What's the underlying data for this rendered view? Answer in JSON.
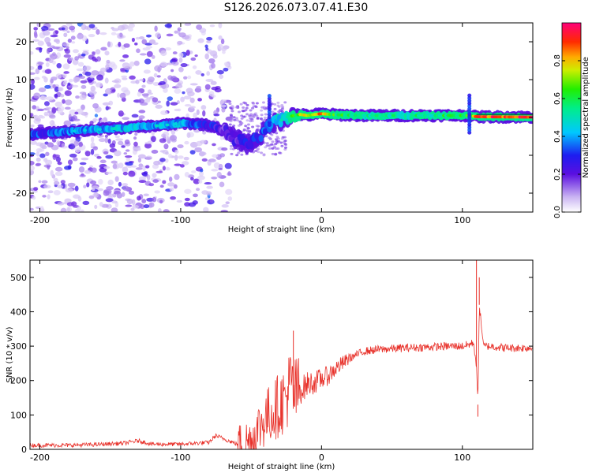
{
  "title": "S126.2026.073.07.41.E30",
  "chart_data": [
    {
      "type": "heatmap",
      "xlabel": "Height of straight line (km)",
      "ylabel": "Frequency (Hz)",
      "xlim": [
        -207,
        150
      ],
      "ylim": [
        -25,
        25
      ],
      "xticks": [
        -200,
        -100,
        0,
        100
      ],
      "yticks": [
        -20,
        -10,
        0,
        10,
        20
      ],
      "colorbar": {
        "label": "Normalized spectral amplitude",
        "range": [
          0,
          1
        ],
        "ticks": [
          0.0,
          0.2,
          0.4,
          0.6,
          0.8
        ]
      },
      "ridge": {
        "x": [
          -207,
          -190,
          -165,
          -150,
          -130,
          -110,
          -100,
          -85,
          -75,
          -68,
          -62,
          -55,
          -50,
          -45,
          -40,
          -35,
          -30,
          -25,
          -20,
          -15,
          -10,
          -5,
          0,
          10,
          30,
          60,
          80,
          100,
          105,
          110,
          150
        ],
        "y": [
          -4.5,
          -4,
          -3.3,
          -3,
          -2.5,
          -2,
          -1.5,
          -1.8,
          -2.5,
          -4,
          -5.5,
          -6.5,
          -7,
          -5.5,
          -3.5,
          -1.5,
          -1,
          0,
          0.5,
          0.8,
          0.5,
          0.8,
          1,
          0.7,
          0.5,
          0.5,
          0.5,
          0.5,
          0.5,
          0.2,
          0.1
        ],
        "amplitude": [
          0.3,
          0.32,
          0.38,
          0.4,
          0.42,
          0.38,
          0.4,
          0.3,
          0.25,
          0.2,
          0.2,
          0.25,
          0.25,
          0.3,
          0.35,
          0.4,
          0.45,
          0.5,
          0.6,
          0.7,
          0.75,
          0.8,
          0.85,
          0.6,
          0.5,
          0.5,
          0.55,
          0.6,
          0.6,
          0.85,
          0.95
        ]
      }
    },
    {
      "type": "line",
      "xlabel": "Height of straight line (km)",
      "ylabel": "SNR (10 * v/v)",
      "xlim": [
        -207,
        150
      ],
      "ylim": [
        0,
        550
      ],
      "xticks": [
        -200,
        -100,
        0,
        100
      ],
      "yticks": [
        0,
        100,
        200,
        300,
        400,
        500
      ],
      "series": [
        {
          "name": "SNR",
          "color": "#e8312a",
          "x": [
            -207,
            -180,
            -160,
            -140,
            -130,
            -120,
            -100,
            -80,
            -75,
            -60,
            -50,
            -45,
            -40,
            -35,
            -30,
            -25,
            -22,
            -20,
            -15,
            -10,
            -5,
            0,
            5,
            10,
            15,
            20,
            25,
            30,
            40,
            60,
            80,
            90,
            95,
            100,
            105,
            108,
            110,
            111,
            112,
            115,
            120,
            130,
            150
          ],
          "y": [
            12,
            12,
            14,
            18,
            25,
            15,
            15,
            20,
            40,
            15,
            25,
            60,
            90,
            110,
            130,
            150,
            200,
            160,
            170,
            190,
            195,
            205,
            215,
            235,
            250,
            265,
            275,
            285,
            290,
            295,
            298,
            300,
            300,
            300,
            305,
            310,
            240,
            130,
            420,
            300,
            300,
            295,
            295
          ]
        }
      ],
      "spikes": [
        {
          "x": -20,
          "y": 345
        },
        {
          "x": 110,
          "y": 560
        },
        {
          "x": 112,
          "y": 500
        },
        {
          "x": 111,
          "y": 95
        }
      ]
    }
  ]
}
